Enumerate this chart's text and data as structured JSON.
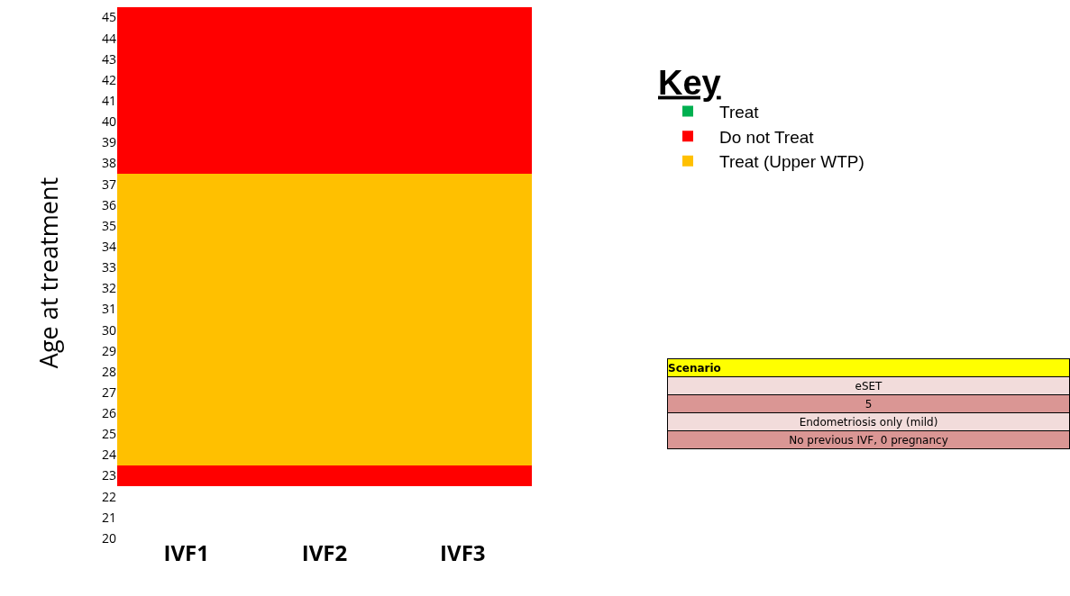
{
  "chart_data": {
    "type": "bar",
    "categories": [
      "IVF1",
      "IVF2",
      "IVF3"
    ],
    "series": [
      {
        "name": "Treat",
        "color": "#00b050",
        "values": [
          null,
          null,
          null
        ]
      },
      {
        "name": "Do not Treat",
        "color": "#ff0000",
        "base": [
          22.5,
          22.5,
          22.5
        ],
        "values": [
          1,
          1,
          1
        ]
      },
      {
        "name": "Treat (Upper WTP)",
        "color": "#ffc000",
        "base": [
          23.5,
          23.5,
          23.5
        ],
        "values": [
          14,
          14,
          14
        ]
      },
      {
        "color": "#ff0000",
        "base": [
          37.5,
          37.5,
          37.5
        ],
        "values": [
          8,
          8,
          8
        ]
      }
    ],
    "ylabel": "Age at treatment",
    "legend_title": "Key",
    "legend": "right",
    "grid": false,
    "ylim": [
      20,
      45.5
    ],
    "yticks": [
      20,
      21,
      22,
      23,
      24,
      25,
      26,
      27,
      28,
      29,
      30,
      31,
      32,
      33,
      34,
      35,
      36,
      37,
      38,
      39,
      40,
      41,
      42,
      43,
      44,
      45
    ],
    "annotations": [
      "Scenario",
      "eSET",
      "5",
      "Endometriosis only (mild)",
      "No previous IVF, 0 pregnancy"
    ]
  }
}
